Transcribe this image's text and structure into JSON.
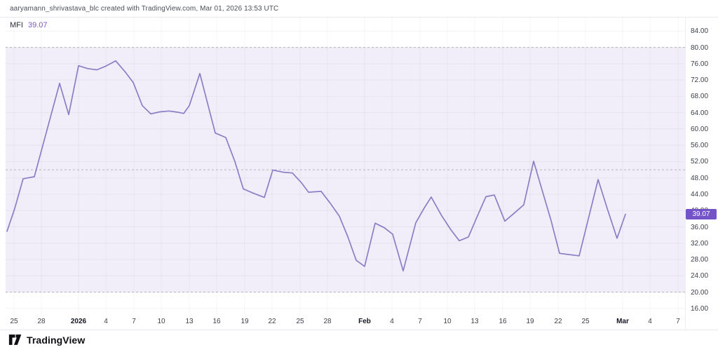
{
  "header": {
    "attribution": "aaryamann_shrivastava_blc created with TradingView.com, Mar 01, 2026 13:53 UTC"
  },
  "indicator": {
    "label": "MFI",
    "value": "39.07"
  },
  "footer": {
    "brand": "TradingView"
  },
  "colors": {
    "line": "#8b7ec5",
    "band": "rgba(126,87,194,0.10)",
    "grid": "rgba(42,46,57,0.055)",
    "dashed_level": "#b2b5be",
    "badge_bg": "#7452c9",
    "accent_value": "#7e57c2"
  },
  "chart_data": {
    "type": "line",
    "title": "MFI",
    "legend_position": "top-left",
    "grid": true,
    "y_axis": {
      "min": 16,
      "max": 84,
      "step": 4,
      "side": "right",
      "tick_decimals": 2
    },
    "hlines": [
      {
        "value": 80,
        "style": "dashed"
      },
      {
        "value": 50,
        "style": "dashed"
      },
      {
        "value": 20,
        "style": "dashed"
      }
    ],
    "band": {
      "from": 20,
      "to": 80
    },
    "last_value": 39.07,
    "x_ticks": [
      {
        "label": "25",
        "x": 20
      },
      {
        "label": "28",
        "x": 59
      },
      {
        "label": "2026",
        "x": 112,
        "bold": true
      },
      {
        "label": "4",
        "x": 151
      },
      {
        "label": "7",
        "x": 191
      },
      {
        "label": "10",
        "x": 230
      },
      {
        "label": "13",
        "x": 270
      },
      {
        "label": "16",
        "x": 309
      },
      {
        "label": "19",
        "x": 349
      },
      {
        "label": "22",
        "x": 388
      },
      {
        "label": "25",
        "x": 428
      },
      {
        "label": "28",
        "x": 467
      },
      {
        "label": "Feb",
        "x": 520,
        "bold": true
      },
      {
        "label": "4",
        "x": 559
      },
      {
        "label": "7",
        "x": 599
      },
      {
        "label": "10",
        "x": 638
      },
      {
        "label": "13",
        "x": 677
      },
      {
        "label": "16",
        "x": 717
      },
      {
        "label": "19",
        "x": 756
      },
      {
        "label": "22",
        "x": 796
      },
      {
        "label": "25",
        "x": 835
      },
      {
        "label": "Mar",
        "x": 888,
        "bold": true
      },
      {
        "label": "4",
        "x": 927
      },
      {
        "label": "7",
        "x": 967
      }
    ],
    "series": [
      {
        "name": "MFI",
        "points": [
          [
            10,
            34.9
          ],
          [
            21,
            40.5
          ],
          [
            33,
            47.8
          ],
          [
            49,
            48.3
          ],
          [
            85,
            71.2
          ],
          [
            98,
            63.5
          ],
          [
            112,
            75.5
          ],
          [
            125,
            74.8
          ],
          [
            138,
            74.5
          ],
          [
            151,
            75.4
          ],
          [
            165,
            76.7
          ],
          [
            178,
            74.1
          ],
          [
            190,
            71.4
          ],
          [
            203,
            65.7
          ],
          [
            215,
            63.7
          ],
          [
            228,
            64.2
          ],
          [
            241,
            64.4
          ],
          [
            254,
            64.1
          ],
          [
            262,
            63.8
          ],
          [
            270,
            65.7
          ],
          [
            285,
            73.6
          ],
          [
            307,
            59.0
          ],
          [
            322,
            57.9
          ],
          [
            335,
            52.0
          ],
          [
            347,
            45.3
          ],
          [
            362,
            44.2
          ],
          [
            377,
            43.2
          ],
          [
            389,
            49.9
          ],
          [
            404,
            49.4
          ],
          [
            417,
            49.2
          ],
          [
            430,
            46.8
          ],
          [
            440,
            44.5
          ],
          [
            458,
            44.7
          ],
          [
            471,
            41.8
          ],
          [
            484,
            38.6
          ],
          [
            496,
            33.6
          ],
          [
            508,
            27.8
          ],
          [
            520,
            26.3
          ],
          [
            535,
            36.9
          ],
          [
            548,
            35.8
          ],
          [
            560,
            34.2
          ],
          [
            575,
            25.2
          ],
          [
            593,
            37.0
          ],
          [
            605,
            40.6
          ],
          [
            615,
            43.3
          ],
          [
            630,
            38.7
          ],
          [
            643,
            35.3
          ],
          [
            655,
            32.6
          ],
          [
            668,
            33.5
          ],
          [
            680,
            38.3
          ],
          [
            693,
            43.4
          ],
          [
            705,
            43.8
          ],
          [
            720,
            37.4
          ],
          [
            733,
            39.3
          ],
          [
            747,
            41.4
          ],
          [
            761,
            52.1
          ],
          [
            786,
            37.5
          ],
          [
            798,
            29.5
          ],
          [
            812,
            29.2
          ],
          [
            826,
            28.9
          ],
          [
            853,
            47.6
          ],
          [
            866,
            40.5
          ],
          [
            880,
            33.2
          ],
          [
            892,
            39.07
          ]
        ]
      }
    ]
  }
}
